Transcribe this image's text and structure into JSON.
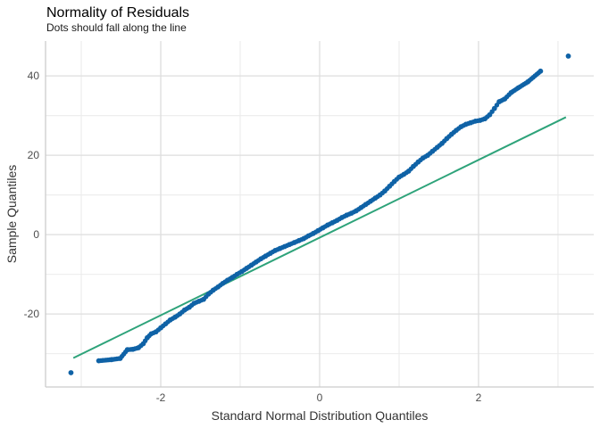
{
  "chart_data": {
    "type": "scatter",
    "title": "Normality of Residuals",
    "subtitle": "Dots should fall along the line",
    "xlabel": "Standard Normal Distribution Quantiles",
    "ylabel": "Sample Quantiles",
    "xlim": [
      -3.45,
      3.45
    ],
    "ylim": [
      -38.4,
      48.8
    ],
    "x_ticks": [
      -2,
      0,
      2
    ],
    "x_tick_labels": [
      "-2",
      "0",
      "2"
    ],
    "y_ticks": [
      -20,
      0,
      20,
      40
    ],
    "y_tick_labels": [
      "-20",
      "0",
      "20",
      "40"
    ],
    "grid": true,
    "point_color": "#0F62A6",
    "line_color": "#2EA37A",
    "reference_line": {
      "x": [
        -3.1,
        3.1
      ],
      "y": [
        -31.1,
        29.6
      ]
    },
    "series": [
      {
        "kind": "points",
        "x": [
          -3.13,
          -2.78,
          -2.62,
          -2.51,
          -2.42,
          -2.35,
          -2.28,
          -2.22,
          -2.17,
          -2.12,
          -2.06,
          -2.0,
          -1.94,
          -1.88,
          -1.82,
          -1.76,
          -1.7,
          -1.64,
          -1.58,
          -1.52,
          -1.46,
          -1.4,
          -1.34,
          -1.28,
          -1.22,
          -1.16,
          -1.1,
          -1.04,
          -0.98,
          -0.92,
          -0.86,
          -0.8,
          -0.74,
          -0.68,
          -0.62,
          -0.56,
          -0.5,
          -0.44,
          -0.38,
          -0.32,
          -0.26,
          -0.2,
          -0.14,
          -0.08,
          -0.02,
          0.04,
          0.1,
          0.16,
          0.22,
          0.28,
          0.34,
          0.4,
          0.46,
          0.52,
          0.58,
          0.64,
          0.7,
          0.76,
          0.82,
          0.88,
          0.94,
          1.0,
          1.06,
          1.12,
          1.18,
          1.24,
          1.3,
          1.36,
          1.42,
          1.48,
          1.54,
          1.6,
          1.66,
          1.72,
          1.78,
          1.84,
          1.9,
          1.96,
          2.02,
          2.08,
          2.14,
          2.2,
          2.26,
          2.33,
          2.41,
          2.5,
          2.62,
          2.78,
          3.13
        ],
        "y": [
          -34.8,
          -31.8,
          -31.5,
          -31.2,
          -29.0,
          -28.9,
          -28.5,
          -27.5,
          -26.0,
          -25.0,
          -24.5,
          -23.5,
          -22.5,
          -21.5,
          -20.8,
          -20.0,
          -19.0,
          -18.3,
          -17.3,
          -16.8,
          -16.3,
          -15.0,
          -14.0,
          -13.2,
          -12.3,
          -11.5,
          -10.8,
          -10.0,
          -9.3,
          -8.5,
          -7.7,
          -6.9,
          -6.1,
          -5.4,
          -4.7,
          -4.0,
          -3.5,
          -3.0,
          -2.5,
          -2.0,
          -1.5,
          -1.0,
          -0.3,
          0.3,
          1.0,
          1.7,
          2.4,
          3.0,
          3.6,
          4.3,
          4.9,
          5.4,
          6.0,
          6.8,
          7.6,
          8.4,
          9.2,
          10.0,
          11.0,
          12.2,
          13.4,
          14.5,
          15.2,
          16.0,
          17.2,
          18.3,
          19.3,
          20.0,
          21.0,
          22.0,
          23.0,
          24.2,
          25.3,
          26.3,
          27.2,
          27.8,
          28.2,
          28.6,
          28.8,
          29.2,
          30.2,
          31.8,
          33.5,
          34.2,
          35.8,
          37.0,
          38.5,
          41.2,
          45.0
        ]
      }
    ]
  }
}
